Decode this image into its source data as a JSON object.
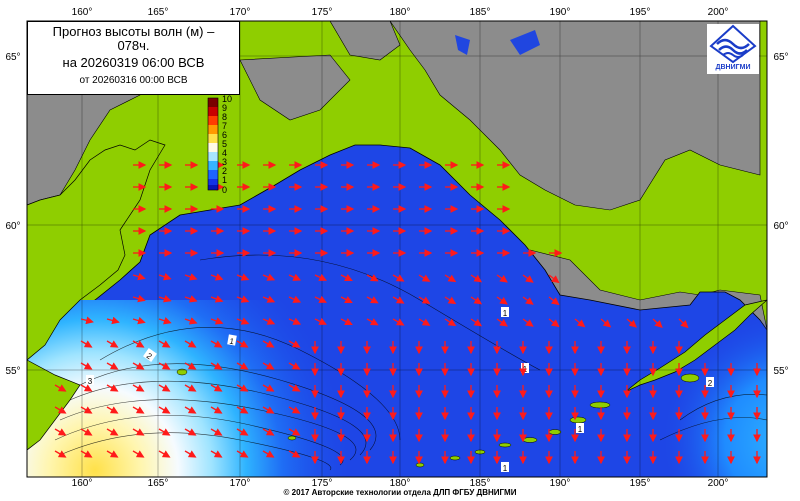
{
  "title": {
    "line1": "Прогноз высоты волн (м) –",
    "line2": "078ч.",
    "line3": "на 20260319 06:00 ВСВ",
    "line4": "от 20260316 00:00 ВСВ"
  },
  "axes": {
    "lon_ticks": [
      "160°",
      "165°",
      "170°",
      "175°",
      "180°",
      "185°",
      "190°",
      "195°",
      "200°"
    ],
    "lat_ticks": [
      "65°",
      "60°",
      "55°"
    ]
  },
  "colorbar": {
    "labels": [
      "10",
      "9",
      "8",
      "7",
      "6",
      "5",
      "4",
      "3",
      "2",
      "1",
      "0"
    ],
    "colors": [
      "#7a0000",
      "#c80000",
      "#ff3c00",
      "#ff9a00",
      "#ffe14a",
      "#fffbe6",
      "#a8e6ff",
      "#37b4ff",
      "#1e64ff",
      "#1432e6",
      "#0a14b4"
    ]
  },
  "logo": {
    "text": "ДВНИГМИ",
    "icon": "wave-logo-icon"
  },
  "isoline_labels": [
    "2",
    "1",
    "1",
    "1",
    "1",
    "1",
    "2",
    "3"
  ],
  "copyright": "© 2017 Авторские технологии отдела ДЛП ФГБУ ДВНИГМИ",
  "colors": {
    "land": "#8fce00",
    "ice": "#888888",
    "sea": "#1e46e6",
    "arrow": "#ff1a1a"
  }
}
